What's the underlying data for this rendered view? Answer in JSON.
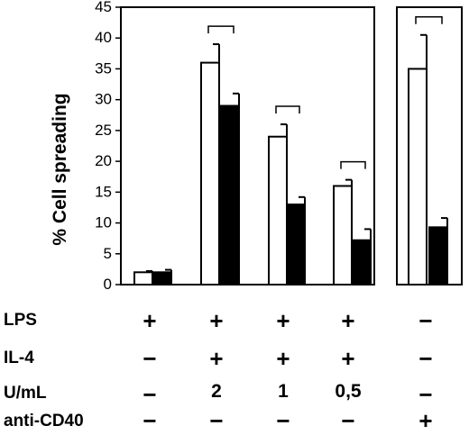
{
  "chart_data": {
    "type": "bar",
    "ylabel": "% Cell spreading",
    "ylim": [
      0,
      45
    ],
    "yticks": [
      "0",
      "5",
      "10",
      "15",
      "20",
      "25",
      "30",
      "35",
      "40",
      "45"
    ],
    "groups": [
      {
        "open": 2,
        "open_err": 0.2,
        "filled": 2,
        "filled_err": 0.4,
        "bracket": false
      },
      {
        "open": 36,
        "open_err": 3,
        "filled": 29,
        "filled_err": 2,
        "bracket": true
      },
      {
        "open": 24,
        "open_err": 2,
        "filled": 13,
        "filled_err": 1.2,
        "bracket": true
      },
      {
        "open": 16,
        "open_err": 1,
        "filled": 7.2,
        "filled_err": 1.8,
        "bracket": true
      },
      {
        "open": 35,
        "open_err": 5.5,
        "filled": 9.3,
        "filled_err": 1.5,
        "bracket": true
      }
    ],
    "colors": {
      "open": "#ffffff",
      "filled": "#000000"
    }
  },
  "conditions": {
    "row_labels": [
      "LPS",
      "IL-4",
      "U/mL",
      "anti-CD40"
    ],
    "rows": [
      [
        "+",
        "+",
        "+",
        "+",
        "−"
      ],
      [
        "−",
        "+",
        "+",
        "+",
        "−"
      ],
      [
        "−",
        "2",
        "1",
        "0,5",
        "−"
      ],
      [
        "−",
        "−",
        "−",
        "−",
        "+"
      ]
    ]
  }
}
